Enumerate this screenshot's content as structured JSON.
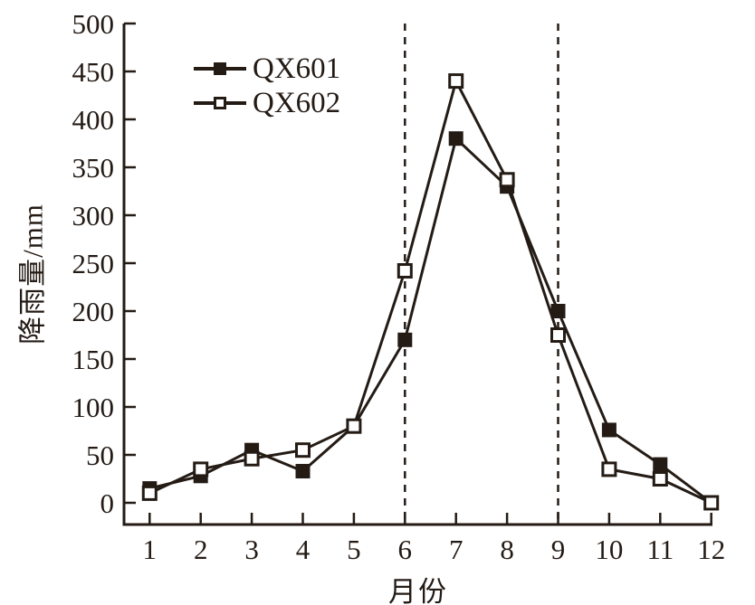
{
  "chart_data": {
    "type": "line",
    "title": "",
    "xlabel": "月份",
    "ylabel": "降雨量/mm",
    "x": [
      1,
      2,
      3,
      4,
      5,
      6,
      7,
      8,
      9,
      10,
      11,
      12
    ],
    "xlim": [
      1,
      12
    ],
    "ylim": [
      0,
      500
    ],
    "ytick_step": 50,
    "grid": false,
    "legend_position": "upper-left-inside",
    "series": [
      {
        "name": "QX601",
        "marker": "filled-square",
        "values": [
          15,
          28,
          55,
          33,
          80,
          170,
          380,
          330,
          200,
          76,
          40,
          0
        ]
      },
      {
        "name": "QX602",
        "marker": "open-square",
        "values": [
          10,
          35,
          46,
          55,
          80,
          242,
          440,
          337,
          175,
          35,
          25,
          0
        ]
      }
    ],
    "annotations": {
      "dashed_vlines_x": [
        6,
        9
      ]
    },
    "colors": {
      "line": "#241b15",
      "background": "#ffffff"
    }
  }
}
